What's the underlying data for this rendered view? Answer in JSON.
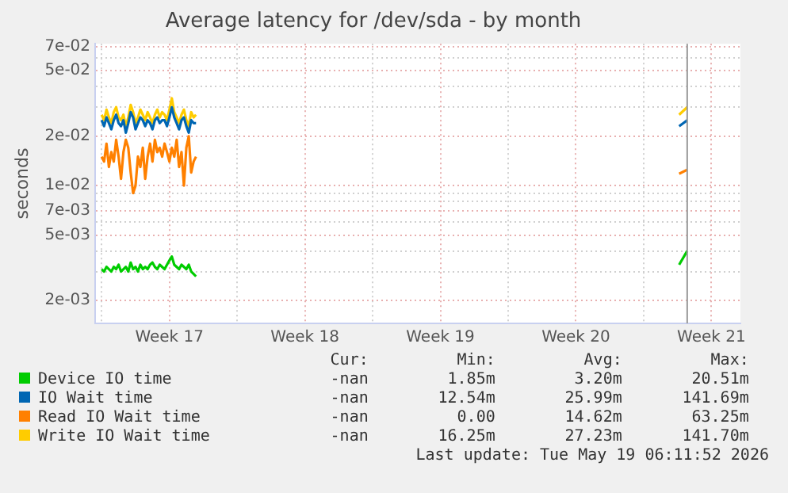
{
  "chart_data": {
    "type": "line",
    "title": "Average latency for /dev/sda - by month",
    "ylabel": "seconds",
    "log": "y",
    "grid": true,
    "legend": "bottom",
    "marker": "none",
    "line_style": "solid",
    "x": [
      "2026-04-20T00:00",
      "2026-04-20T03:00",
      "2026-04-20T06:00",
      "2026-04-20T09:00",
      "2026-04-20T12:00",
      "2026-04-20T15:00",
      "2026-04-20T18:00",
      "2026-04-20T21:00",
      "2026-04-21T00:00",
      "2026-04-21T03:00",
      "2026-04-21T06:00",
      "2026-04-21T09:00",
      "2026-04-21T12:00",
      "2026-04-21T15:00",
      "2026-04-21T18:00",
      "2026-04-21T21:00",
      "2026-04-22T00:00",
      "2026-04-22T03:00",
      "2026-04-22T06:00",
      "2026-04-22T09:00",
      "2026-04-22T12:00",
      "2026-04-22T15:00",
      "2026-04-22T18:00",
      "2026-04-22T21:00",
      "2026-04-23T00:00",
      "2026-04-23T03:00",
      "2026-04-23T06:00",
      "2026-04-23T09:00",
      "2026-04-23T12:00",
      "2026-04-23T15:00",
      "2026-04-23T18:00",
      "2026-04-23T21:00",
      "2026-04-24T00:00",
      "2026-04-24T03:00",
      "2026-04-24T06:00",
      "2026-04-24T09:00",
      "2026-04-24T12:00",
      "2026-04-24T15:00",
      "2026-04-24T18:00",
      "2026-04-24T21:00",
      "2026-05-01T00:00",
      "2026-05-19T20:00",
      "2026-05-20T06:00"
    ],
    "series": [
      {
        "name": "Device IO time",
        "color": "#00cc00",
        "values": [
          0.0031,
          0.003,
          0.0032,
          0.0031,
          0.003,
          0.0032,
          0.0031,
          0.0033,
          0.003,
          0.0031,
          0.0032,
          0.003,
          0.0034,
          0.0031,
          0.0032,
          0.003,
          0.0033,
          0.0031,
          0.0032,
          0.0031,
          0.0033,
          0.0034,
          0.0032,
          0.0031,
          0.0033,
          0.0032,
          0.0031,
          0.0033,
          0.0035,
          0.0037,
          0.0033,
          0.0032,
          0.0031,
          0.0033,
          0.0032,
          0.0031,
          0.0033,
          0.003,
          0.0029,
          0.0028,
          null,
          0.0033,
          0.004
        ]
      },
      {
        "name": "IO Wait time",
        "color": "#0066b3",
        "values": [
          0.025,
          0.023,
          0.026,
          0.024,
          0.022,
          0.025,
          0.027,
          0.024,
          0.023,
          0.025,
          0.021,
          0.024,
          0.028,
          0.026,
          0.022,
          0.024,
          0.026,
          0.025,
          0.023,
          0.025,
          0.024,
          0.022,
          0.025,
          0.026,
          0.024,
          0.025,
          0.025,
          0.023,
          0.026,
          0.03,
          0.026,
          0.024,
          0.022,
          0.025,
          0.026,
          0.023,
          0.021,
          0.025,
          0.024,
          0.024,
          null,
          0.023,
          0.025
        ]
      },
      {
        "name": "Read IO Wait time",
        "color": "#ff8000",
        "values": [
          0.015,
          0.014,
          0.018,
          0.013,
          0.016,
          0.014,
          0.019,
          0.015,
          0.011,
          0.016,
          0.019,
          0.017,
          0.012,
          0.009,
          0.01,
          0.015,
          0.013,
          0.017,
          0.011,
          0.015,
          0.018,
          0.014,
          0.019,
          0.016,
          0.017,
          0.015,
          0.018,
          0.016,
          0.014,
          0.017,
          0.015,
          0.019,
          0.013,
          0.016,
          0.01,
          0.017,
          0.02,
          0.012,
          0.014,
          0.015,
          null,
          0.0118,
          0.0125
        ]
      },
      {
        "name": "Write IO Wait time",
        "color": "#ffcc00",
        "values": [
          0.027,
          0.025,
          0.029,
          0.026,
          0.024,
          0.028,
          0.03,
          0.026,
          0.025,
          0.027,
          0.023,
          0.026,
          0.031,
          0.028,
          0.024,
          0.026,
          0.029,
          0.027,
          0.025,
          0.028,
          0.026,
          0.024,
          0.027,
          0.029,
          0.026,
          0.028,
          0.027,
          0.025,
          0.029,
          0.034,
          0.028,
          0.026,
          0.024,
          0.027,
          0.029,
          0.025,
          0.023,
          0.028,
          0.026,
          0.027,
          null,
          0.027,
          0.03
        ]
      }
    ],
    "xlim": [
      "2026-04-19T16:00",
      "2026-05-23T00:00"
    ],
    "xticks": [
      {
        "value": "2026-04-20",
        "label": null
      },
      {
        "value": "2026-04-23T12:00",
        "label": "Week 17"
      },
      {
        "value": "2026-04-27",
        "label": null
      },
      {
        "value": "2026-04-30T12:00",
        "label": "Week 18"
      },
      {
        "value": "2026-05-04",
        "label": null
      },
      {
        "value": "2026-05-07T12:00",
        "label": "Week 19"
      },
      {
        "value": "2026-05-11",
        "label": null
      },
      {
        "value": "2026-05-14T12:00",
        "label": "Week 20"
      },
      {
        "value": "2026-05-18",
        "label": null
      },
      {
        "value": "2026-05-21T12:00",
        "label": "Week 21"
      }
    ],
    "ylim": [
      0.00145,
      0.073
    ],
    "yticks": [
      {
        "value": 0.002,
        "label": "2e-03"
      },
      {
        "value": 0.003,
        "label": null
      },
      {
        "value": 0.004,
        "label": null
      },
      {
        "value": 0.005,
        "label": "5e-03"
      },
      {
        "value": 0.006,
        "label": null
      },
      {
        "value": 0.007,
        "label": "7e-03"
      },
      {
        "value": 0.008,
        "label": null
      },
      {
        "value": 0.009,
        "label": null
      },
      {
        "value": 0.01,
        "label": "1e-02"
      },
      {
        "value": 0.02,
        "label": "2e-02"
      },
      {
        "value": 0.03,
        "label": null
      },
      {
        "value": 0.04,
        "label": null
      },
      {
        "value": 0.05,
        "label": "5e-02"
      },
      {
        "value": 0.06,
        "label": null
      },
      {
        "value": 0.07,
        "label": "7e-02"
      }
    ],
    "ref_lines": [
      {
        "axis": "x",
        "value": "2026-05-20T06:00",
        "color": "#999999",
        "line_style": "solid"
      }
    ],
    "annotations": [
      "Cur:",
      "Min:",
      "Avg:",
      "Max:",
      "-nan",
      "1.85m",
      "3.20m",
      "20.51m",
      "-nan",
      "12.54m",
      "25.99m",
      "141.69m",
      "-nan",
      "0.00",
      "14.62m",
      "63.25m",
      "-nan",
      "16.25m",
      "27.23m",
      "141.70m",
      "Last update: Tue May 19 06:11:52 2026"
    ]
  }
}
